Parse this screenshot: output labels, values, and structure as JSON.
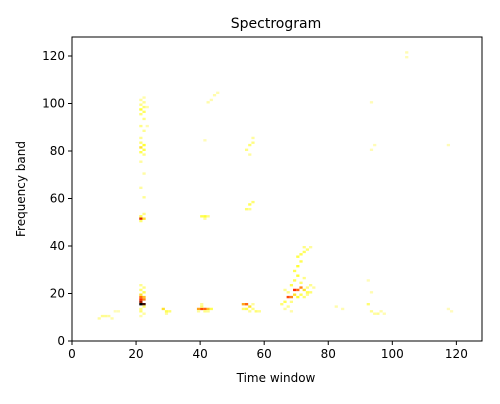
{
  "chart_data": {
    "type": "heatmap",
    "title": "Spectrogram",
    "xlabel": "Time window",
    "ylabel": "Frequency band",
    "xlim": [
      0,
      128
    ],
    "ylim": [
      0,
      128
    ],
    "x_ticks": [
      0,
      20,
      40,
      60,
      80,
      100,
      120
    ],
    "y_ticks": [
      0,
      20,
      40,
      60,
      80,
      100,
      120
    ],
    "grid": false,
    "colormap": "hot_r",
    "value_range": [
      0,
      1
    ],
    "colors": {
      "background": "#ffffff",
      "low": "#fffbd0",
      "mid": "#ffff33",
      "high": "#ff2a00",
      "peak": "#000000"
    },
    "cells": [
      [
        8,
        9,
        0.08
      ],
      [
        9,
        10,
        0.1
      ],
      [
        10,
        10,
        0.1
      ],
      [
        11,
        10,
        0.08
      ],
      [
        12,
        9,
        0.06
      ],
      [
        13,
        12,
        0.04
      ],
      [
        14,
        12,
        0.04
      ],
      [
        21,
        15,
        1.0
      ],
      [
        22,
        15,
        0.9
      ],
      [
        21,
        16,
        0.75
      ],
      [
        21,
        17,
        0.6
      ],
      [
        22,
        17,
        0.45
      ],
      [
        21,
        18,
        0.5
      ],
      [
        22,
        18,
        0.35
      ],
      [
        21,
        19,
        0.3
      ],
      [
        22,
        20,
        0.2
      ],
      [
        21,
        21,
        0.15
      ],
      [
        22,
        22,
        0.12
      ],
      [
        21,
        23,
        0.1
      ],
      [
        22,
        14,
        0.15
      ],
      [
        21,
        13,
        0.12
      ],
      [
        21,
        12,
        0.15
      ],
      [
        22,
        11,
        0.08
      ],
      [
        21,
        10,
        0.06
      ],
      [
        21,
        51,
        0.65
      ],
      [
        22,
        51,
        0.3
      ],
      [
        21,
        52,
        0.2
      ],
      [
        22,
        53,
        0.12
      ],
      [
        21,
        50,
        0.15
      ],
      [
        22,
        60,
        0.1
      ],
      [
        21,
        64,
        0.08
      ],
      [
        22,
        70,
        0.07
      ],
      [
        21,
        75,
        0.08
      ],
      [
        21,
        79,
        0.2
      ],
      [
        22,
        80,
        0.22
      ],
      [
        21,
        81,
        0.3
      ],
      [
        22,
        82,
        0.25
      ],
      [
        21,
        83,
        0.15
      ],
      [
        22,
        78,
        0.12
      ],
      [
        21,
        85,
        0.1
      ],
      [
        22,
        88,
        0.1
      ],
      [
        21,
        90,
        0.12
      ],
      [
        22,
        93,
        0.12
      ],
      [
        21,
        95,
        0.15
      ],
      [
        22,
        96,
        0.18
      ],
      [
        21,
        97,
        0.25
      ],
      [
        22,
        98,
        0.15
      ],
      [
        21,
        99,
        0.12
      ],
      [
        22,
        100,
        0.1
      ],
      [
        21,
        101,
        0.08
      ],
      [
        22,
        102,
        0.06
      ],
      [
        23,
        90,
        0.05
      ],
      [
        23,
        98,
        0.06
      ],
      [
        28,
        13,
        0.3
      ],
      [
        29,
        12,
        0.2
      ],
      [
        30,
        12,
        0.15
      ],
      [
        29,
        11,
        0.08
      ],
      [
        39,
        13,
        0.4
      ],
      [
        40,
        13,
        0.55
      ],
      [
        41,
        13,
        0.5
      ],
      [
        42,
        13,
        0.35
      ],
      [
        43,
        13,
        0.2
      ],
      [
        40,
        14,
        0.15
      ],
      [
        41,
        12,
        0.12
      ],
      [
        42,
        12,
        0.1
      ],
      [
        40,
        15,
        0.08
      ],
      [
        39,
        12,
        0.08
      ],
      [
        40,
        52,
        0.2
      ],
      [
        41,
        52,
        0.25
      ],
      [
        42,
        52,
        0.12
      ],
      [
        41,
        51,
        0.08
      ],
      [
        42,
        100,
        0.06
      ],
      [
        44,
        103,
        0.06
      ],
      [
        45,
        104,
        0.05
      ],
      [
        43,
        101,
        0.05
      ],
      [
        41,
        84,
        0.04
      ],
      [
        53,
        15,
        0.4
      ],
      [
        54,
        15,
        0.5
      ],
      [
        55,
        14,
        0.3
      ],
      [
        54,
        13,
        0.2
      ],
      [
        53,
        13,
        0.15
      ],
      [
        56,
        13,
        0.12
      ],
      [
        57,
        12,
        0.15
      ],
      [
        58,
        12,
        0.1
      ],
      [
        55,
        12,
        0.1
      ],
      [
        56,
        15,
        0.08
      ],
      [
        54,
        55,
        0.15
      ],
      [
        55,
        57,
        0.2
      ],
      [
        56,
        58,
        0.15
      ],
      [
        55,
        55,
        0.1
      ],
      [
        54,
        80,
        0.12
      ],
      [
        55,
        82,
        0.15
      ],
      [
        56,
        83,
        0.12
      ],
      [
        55,
        78,
        0.08
      ],
      [
        56,
        85,
        0.08
      ],
      [
        65,
        15,
        0.15
      ],
      [
        66,
        16,
        0.2
      ],
      [
        67,
        18,
        0.55
      ],
      [
        68,
        18,
        0.45
      ],
      [
        69,
        21,
        0.6
      ],
      [
        70,
        21,
        0.5
      ],
      [
        71,
        22,
        0.45
      ],
      [
        72,
        21,
        0.3
      ],
      [
        73,
        20,
        0.2
      ],
      [
        74,
        20,
        0.15
      ],
      [
        69,
        19,
        0.3
      ],
      [
        70,
        18,
        0.25
      ],
      [
        71,
        19,
        0.2
      ],
      [
        72,
        18,
        0.15
      ],
      [
        73,
        19,
        0.1
      ],
      [
        68,
        23,
        0.2
      ],
      [
        69,
        25,
        0.2
      ],
      [
        70,
        27,
        0.25
      ],
      [
        69,
        29,
        0.2
      ],
      [
        70,
        31,
        0.25
      ],
      [
        71,
        33,
        0.2
      ],
      [
        70,
        35,
        0.22
      ],
      [
        71,
        36,
        0.2
      ],
      [
        72,
        37,
        0.18
      ],
      [
        73,
        38,
        0.15
      ],
      [
        72,
        39,
        0.12
      ],
      [
        74,
        39,
        0.08
      ],
      [
        68,
        16,
        0.12
      ],
      [
        67,
        14,
        0.1
      ],
      [
        66,
        13,
        0.08
      ],
      [
        68,
        12,
        0.06
      ],
      [
        71,
        24,
        0.15
      ],
      [
        72,
        26,
        0.12
      ],
      [
        73,
        22,
        0.12
      ],
      [
        74,
        23,
        0.1
      ],
      [
        75,
        22,
        0.08
      ],
      [
        66,
        21,
        0.1
      ],
      [
        67,
        20,
        0.12
      ],
      [
        82,
        14,
        0.06
      ],
      [
        84,
        13,
        0.05
      ],
      [
        92,
        15,
        0.15
      ],
      [
        93,
        12,
        0.1
      ],
      [
        94,
        11,
        0.08
      ],
      [
        95,
        11,
        0.1
      ],
      [
        96,
        12,
        0.06
      ],
      [
        97,
        11,
        0.05
      ],
      [
        93,
        20,
        0.05
      ],
      [
        92,
        25,
        0.04
      ],
      [
        104,
        121,
        0.05
      ],
      [
        104,
        119,
        0.04
      ],
      [
        93,
        80,
        0.04
      ],
      [
        94,
        82,
        0.04
      ],
      [
        93,
        100,
        0.04
      ],
      [
        117,
        82,
        0.04
      ],
      [
        118,
        12,
        0.03
      ],
      [
        117,
        13,
        0.03
      ]
    ]
  }
}
